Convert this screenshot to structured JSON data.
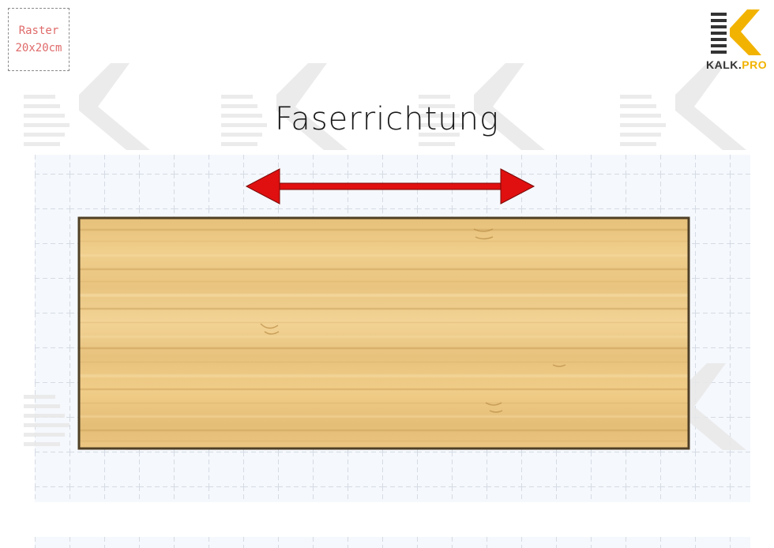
{
  "raster_label": {
    "line1": "Raster",
    "line2": "20x20cm"
  },
  "title": "Faserrichtung",
  "brand": {
    "name_main": "KALK.",
    "name_accent": "PRO",
    "accent_color": "#f2b300",
    "logo_icon": "kalk-pro-k-logo"
  },
  "diagram": {
    "arrow_color": "#e01010",
    "arrow_direction": "horizontal-double",
    "board_material": "bamboo-wood",
    "board_border_color": "#5a4a2e",
    "grid_color": "#d8dde6"
  }
}
